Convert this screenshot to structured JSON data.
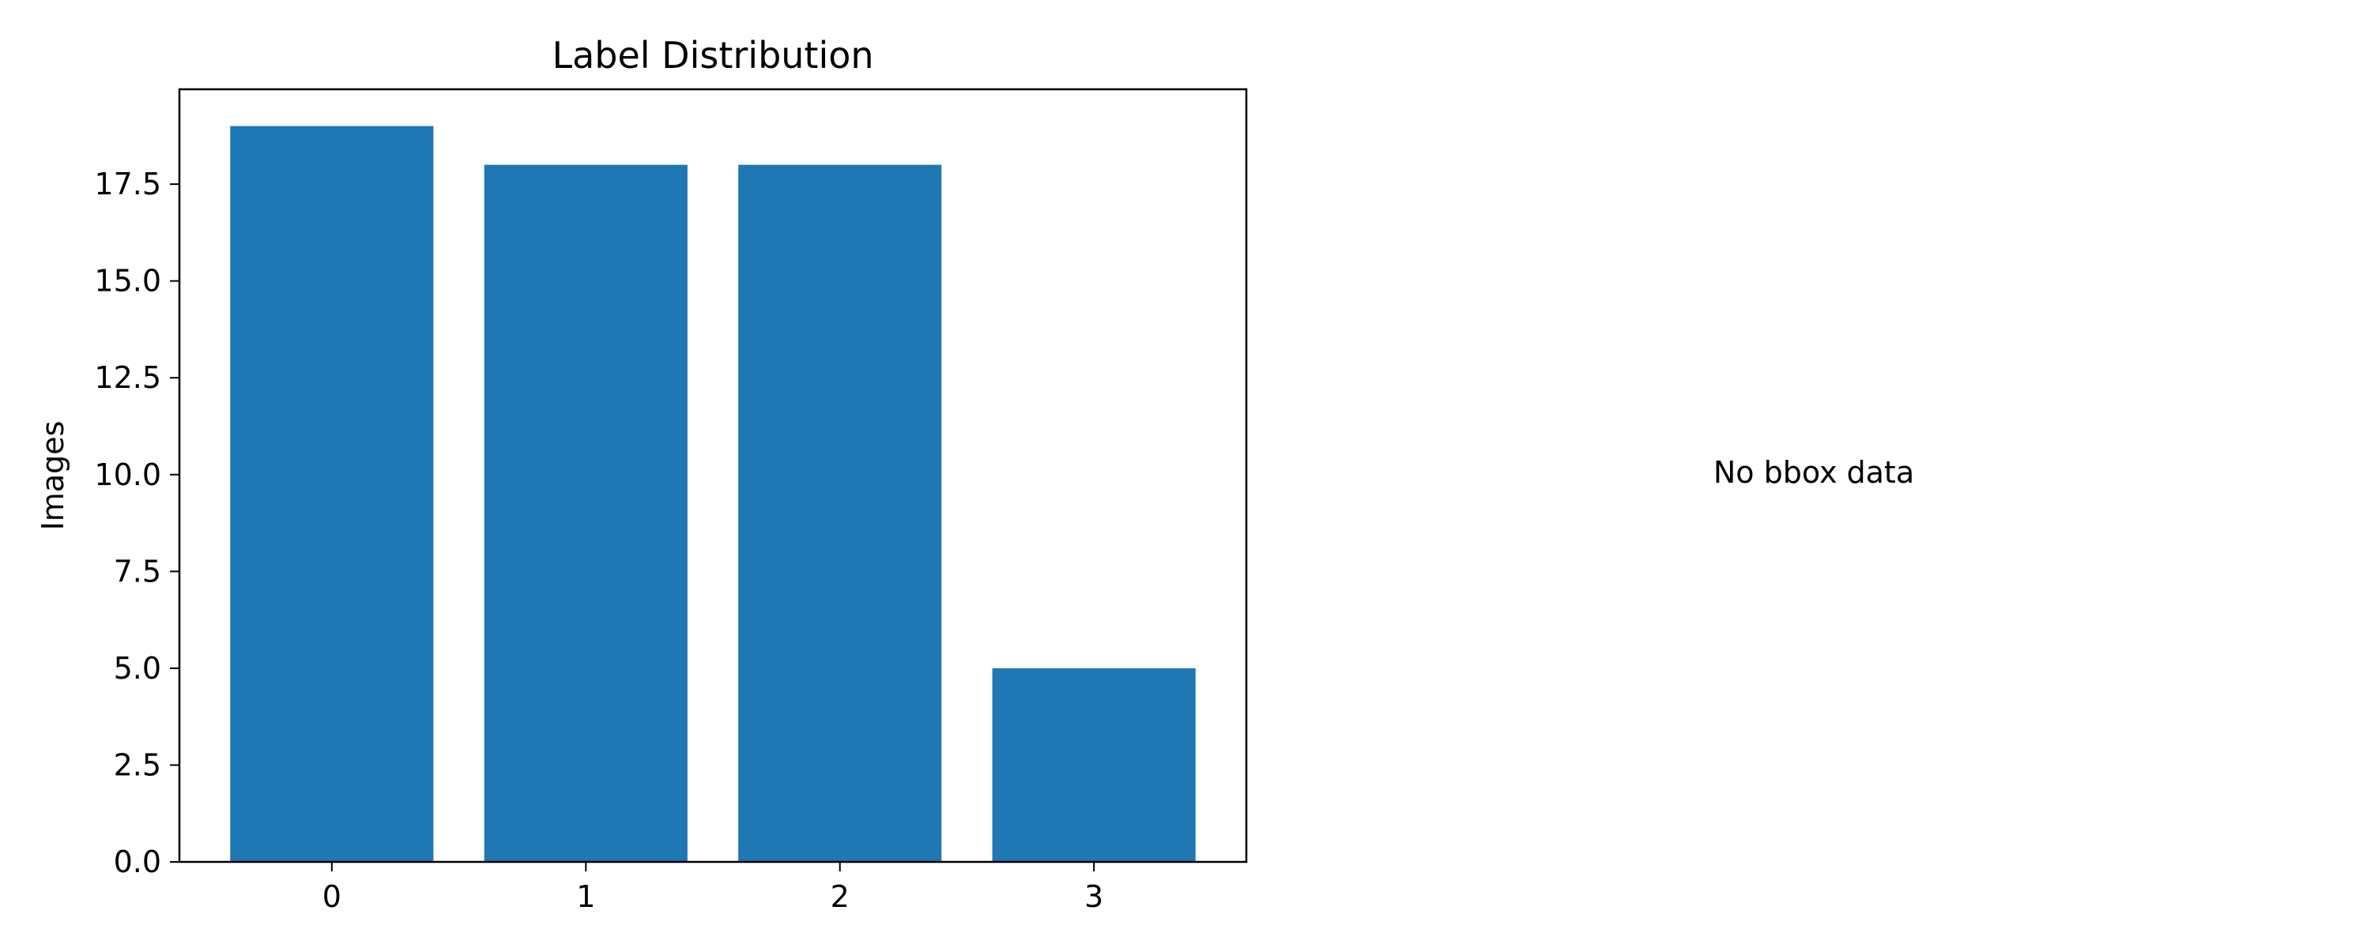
{
  "chart_data": [
    {
      "type": "bar",
      "title": "Label Distribution",
      "xlabel": "",
      "ylabel": "Images",
      "categories": [
        "0",
        "1",
        "2",
        "3"
      ],
      "values": [
        19,
        18,
        18,
        5
      ],
      "ylim": [
        0,
        19.95
      ],
      "yticks": [
        0.0,
        2.5,
        5.0,
        7.5,
        10.0,
        12.5,
        15.0,
        17.5
      ],
      "ytick_labels": [
        "0.0",
        "2.5",
        "5.0",
        "7.5",
        "10.0",
        "12.5",
        "15.0",
        "17.5"
      ],
      "bar_color": "#1f77b4",
      "grid": false,
      "legend": "none"
    },
    {
      "type": "bar",
      "message": "No bbox data",
      "axes_visible": false
    }
  ]
}
